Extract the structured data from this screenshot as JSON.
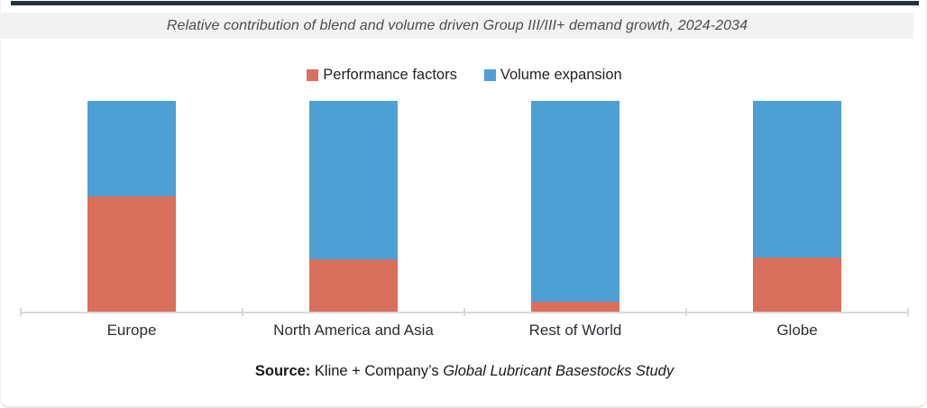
{
  "chart_data": {
    "type": "bar",
    "stacked": true,
    "stacked_mode": "percent_100",
    "title": "Relative contribution of blend and volume driven Group III/III+ demand growth, 2024-2034",
    "categories": [
      "Europe",
      "North America and Asia",
      "Rest of World",
      "Globe"
    ],
    "series": [
      {
        "name": "Performance factors",
        "color": "#D96F5D",
        "values": [
          55,
          25,
          5,
          26
        ]
      },
      {
        "name": "Volume expansion",
        "color": "#4E9FD4",
        "values": [
          45,
          75,
          95,
          74
        ]
      }
    ],
    "ylim": [
      0,
      100
    ],
    "grid": false,
    "y_axis_visible": false,
    "legend_position": "top",
    "axis_color": "#D9D9D9"
  },
  "source": {
    "prefix": "Source:",
    "publisher": " Kline + Company’s ",
    "study": "Global Lubricant Basestocks Study"
  },
  "colors": {
    "top_line": "#26323A",
    "title_strip_bg": "#F2F2F2"
  }
}
